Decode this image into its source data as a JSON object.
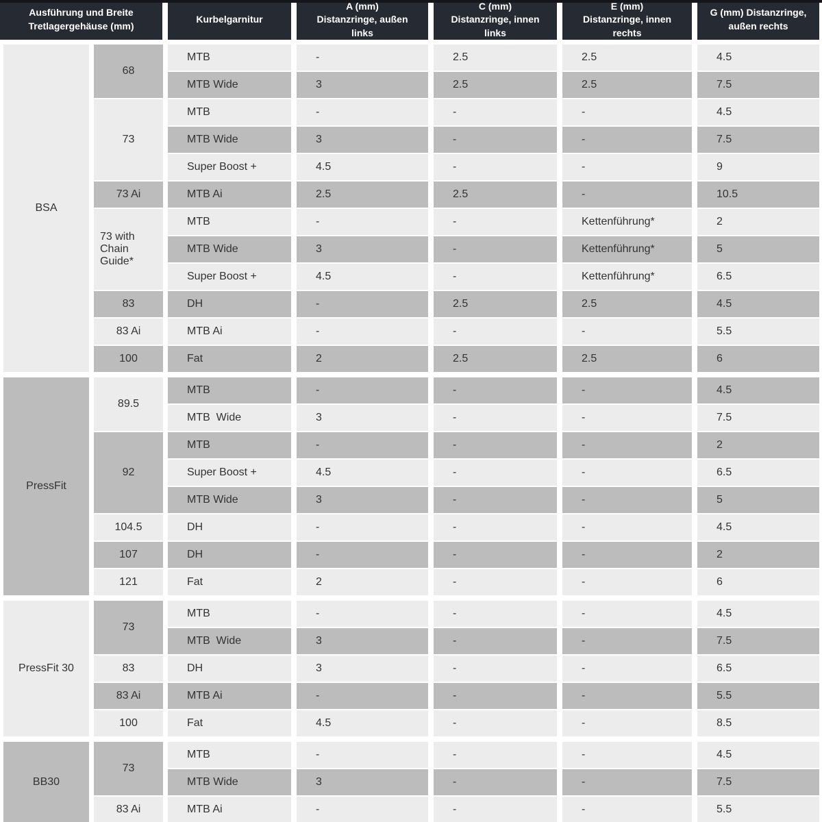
{
  "colors": {
    "header_bg": "#262a33",
    "header_top_edge": "#14161b",
    "header_text": "#ffffff",
    "cell_light": "#ececec",
    "cell_dark": "#bcbcbc",
    "body_text": "#333333",
    "page_bg": "#ffffff"
  },
  "header": {
    "columns": [
      {
        "label": "Ausführung und Breite\nTretlagergehäuse (mm)"
      },
      {
        "label": "Kurbelgarnitur"
      },
      {
        "label": "A (mm)\nDistanzringe, außen\nlinks"
      },
      {
        "label": "C (mm)\nDistanzringe, innen\nlinks"
      },
      {
        "label": "E (mm)\nDistanzringe, innen\nrechts"
      },
      {
        "label": "G (mm) Distanzringe,\naußen rechts"
      }
    ]
  },
  "table": {
    "sections": [
      {
        "group": "BSA",
        "shade": "light",
        "widths": [
          {
            "label": "68",
            "shade": "dark",
            "rows": [
              {
                "crank": "MTB",
                "a": "-",
                "c": "2.5",
                "e": "2.5",
                "g": "4.5",
                "shade": "light"
              },
              {
                "crank": "MTB Wide",
                "a": "3",
                "c": "2.5",
                "e": "2.5",
                "g": "7.5",
                "shade": "dark"
              }
            ]
          },
          {
            "label": "73",
            "shade": "light",
            "rows": [
              {
                "crank": "MTB",
                "a": "-",
                "c": "-",
                "e": "-",
                "g": "4.5",
                "shade": "light"
              },
              {
                "crank": "MTB Wide",
                "a": "3",
                "c": "-",
                "e": "-",
                "g": "7.5",
                "shade": "dark"
              },
              {
                "crank": "Super Boost +",
                "a": "4.5",
                "c": "-",
                "e": "-",
                "g": "9",
                "shade": "light"
              }
            ]
          },
          {
            "label": "73 Ai",
            "shade": "dark",
            "rows": [
              {
                "crank": "MTB Ai",
                "a": "2.5",
                "c": "2.5",
                "e": "-",
                "g": "10.5",
                "shade": "dark"
              }
            ]
          },
          {
            "label": "73 with Chain Guide*",
            "shade": "light",
            "wrap": true,
            "rows": [
              {
                "crank": "MTB",
                "a": "-",
                "c": "-",
                "e": "Kettenführung*",
                "g": "2",
                "shade": "light"
              },
              {
                "crank": "MTB Wide",
                "a": "3",
                "c": "-",
                "e": "Kettenführung*",
                "g": "5",
                "shade": "dark"
              },
              {
                "crank": "Super Boost +",
                "a": "4.5",
                "c": "-",
                "e": "Kettenführung*",
                "g": "6.5",
                "shade": "light"
              }
            ]
          },
          {
            "label": "83",
            "shade": "dark",
            "rows": [
              {
                "crank": "DH",
                "a": "-",
                "c": "2.5",
                "e": "2.5",
                "g": "4.5",
                "shade": "dark"
              }
            ]
          },
          {
            "label": "83 Ai",
            "shade": "light",
            "rows": [
              {
                "crank": "MTB Ai",
                "a": "-",
                "c": "-",
                "e": "-",
                "g": "5.5",
                "shade": "light"
              }
            ]
          },
          {
            "label": "100",
            "shade": "dark",
            "rows": [
              {
                "crank": "Fat",
                "a": "2",
                "c": "2.5",
                "e": "2.5",
                "g": "6",
                "shade": "dark"
              }
            ]
          }
        ]
      },
      {
        "group": "PressFit",
        "shade": "dark",
        "widths": [
          {
            "label": "89.5",
            "shade": "light",
            "rows": [
              {
                "crank": "MTB",
                "a": "-",
                "c": "-",
                "e": "-",
                "g": "4.5",
                "shade": "dark"
              },
              {
                "crank": "MTB  Wide",
                "a": "3",
                "c": "-",
                "e": "-",
                "g": "7.5",
                "shade": "light"
              }
            ]
          },
          {
            "label": "92",
            "shade": "dark",
            "rows": [
              {
                "crank": "MTB",
                "a": "-",
                "c": "-",
                "e": "-",
                "g": "2",
                "shade": "dark"
              },
              {
                "crank": "Super Boost +",
                "a": "4.5",
                "c": "-",
                "e": "-",
                "g": "6.5",
                "shade": "light"
              },
              {
                "crank": "MTB Wide",
                "a": "3",
                "c": "-",
                "e": "-",
                "g": "5",
                "shade": "dark"
              }
            ]
          },
          {
            "label": "104.5",
            "shade": "light",
            "rows": [
              {
                "crank": "DH",
                "a": "-",
                "c": "-",
                "e": "-",
                "g": "4.5",
                "shade": "light"
              }
            ]
          },
          {
            "label": "107",
            "shade": "dark",
            "rows": [
              {
                "crank": "DH",
                "a": "-",
                "c": "-",
                "e": "-",
                "g": "2",
                "shade": "dark"
              }
            ]
          },
          {
            "label": "121",
            "shade": "light",
            "rows": [
              {
                "crank": "Fat",
                "a": "2",
                "c": "-",
                "e": "-",
                "g": "6",
                "shade": "light"
              }
            ]
          }
        ]
      },
      {
        "group": "PressFit 30",
        "shade": "light",
        "widths": [
          {
            "label": "73",
            "shade": "dark",
            "rows": [
              {
                "crank": "MTB",
                "a": "-",
                "c": "-",
                "e": "-",
                "g": "4.5",
                "shade": "light"
              },
              {
                "crank": "MTB  Wide",
                "a": "3",
                "c": "-",
                "e": "-",
                "g": "7.5",
                "shade": "dark"
              }
            ]
          },
          {
            "label": "83",
            "shade": "light",
            "rows": [
              {
                "crank": "DH",
                "a": "3",
                "c": "-",
                "e": "-",
                "g": "6.5",
                "shade": "light"
              }
            ]
          },
          {
            "label": "83 Ai",
            "shade": "dark",
            "rows": [
              {
                "crank": "MTB Ai",
                "a": "-",
                "c": "-",
                "e": "-",
                "g": "5.5",
                "shade": "dark"
              }
            ]
          },
          {
            "label": "100",
            "shade": "light",
            "rows": [
              {
                "crank": "Fat",
                "a": "4.5",
                "c": "-",
                "e": "-",
                "g": "8.5",
                "shade": "light"
              }
            ]
          }
        ]
      },
      {
        "group": "BB30",
        "shade": "dark",
        "widths": [
          {
            "label": "73",
            "shade": "dark",
            "rows": [
              {
                "crank": "MTB",
                "a": "-",
                "c": "-",
                "e": "-",
                "g": "4.5",
                "shade": "light"
              },
              {
                "crank": "MTB Wide",
                "a": "3",
                "c": "-",
                "e": "-",
                "g": "7.5",
                "shade": "dark"
              }
            ]
          },
          {
            "label": "83 Ai",
            "shade": "light",
            "rows": [
              {
                "crank": "MTB Ai",
                "a": "-",
                "c": "-",
                "e": "-",
                "g": "5.5",
                "shade": "light"
              }
            ]
          }
        ]
      }
    ]
  }
}
